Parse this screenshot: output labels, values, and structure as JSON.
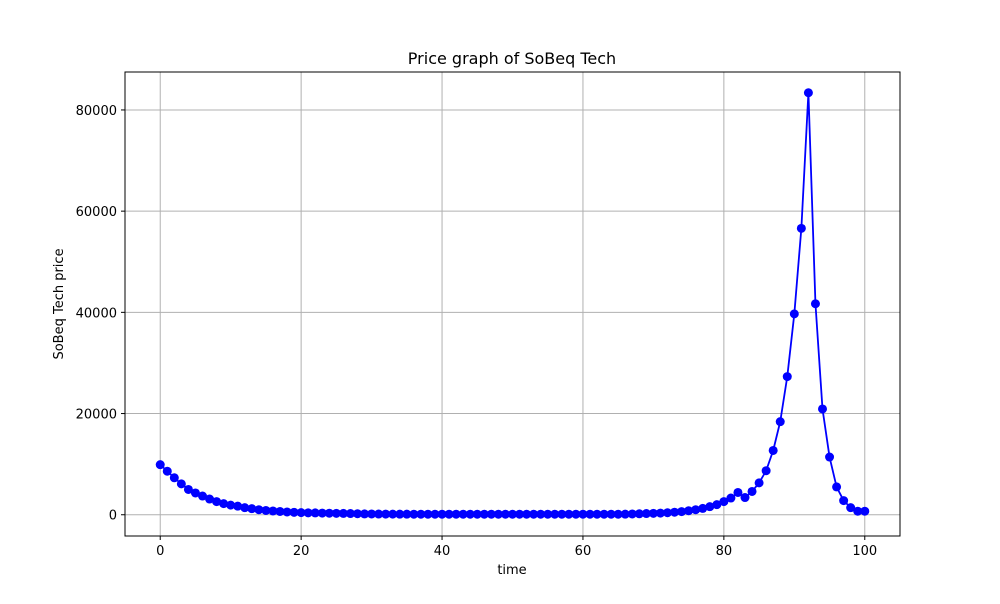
{
  "chart_data": {
    "type": "line",
    "title": "Price graph of SoBeq Tech",
    "xlabel": "time",
    "ylabel": "SoBeq Tech price",
    "xlim": [
      -5,
      105
    ],
    "ylim": [
      -4200,
      87500
    ],
    "x_ticks": [
      0,
      20,
      40,
      60,
      80,
      100
    ],
    "y_ticks": [
      0,
      20000,
      40000,
      60000,
      80000
    ],
    "grid": true,
    "legend": "none",
    "series": [
      {
        "color": "#0000ff",
        "marker": "circle",
        "x": [
          0,
          1,
          2,
          3,
          4,
          5,
          6,
          7,
          8,
          9,
          10,
          11,
          12,
          13,
          14,
          15,
          16,
          17,
          18,
          19,
          20,
          21,
          22,
          23,
          24,
          25,
          26,
          27,
          28,
          29,
          30,
          31,
          32,
          33,
          34,
          35,
          36,
          37,
          38,
          39,
          40,
          41,
          42,
          43,
          44,
          45,
          46,
          47,
          48,
          49,
          50,
          51,
          52,
          53,
          54,
          55,
          56,
          57,
          58,
          59,
          60,
          61,
          62,
          63,
          64,
          65,
          66,
          67,
          68,
          69,
          70,
          71,
          72,
          73,
          74,
          75,
          76,
          77,
          78,
          79,
          80,
          81,
          82,
          83,
          84,
          85,
          86,
          87,
          88,
          89,
          90,
          91,
          92,
          93,
          94,
          95,
          96,
          97,
          98,
          99,
          100
        ],
        "values": [
          9900,
          8600,
          7300,
          6100,
          5000,
          4300,
          3700,
          3100,
          2600,
          2200,
          1900,
          1700,
          1400,
          1200,
          1000,
          850,
          750,
          650,
          550,
          480,
          420,
          380,
          360,
          330,
          300,
          280,
          260,
          240,
          200,
          170,
          150,
          140,
          130,
          125,
          120,
          115,
          110,
          105,
          100,
          100,
          100,
          100,
          100,
          100,
          100,
          100,
          100,
          100,
          100,
          100,
          100,
          100,
          100,
          100,
          100,
          100,
          100,
          100,
          100,
          100,
          100,
          100,
          100,
          100,
          100,
          110,
          120,
          150,
          190,
          240,
          280,
          330,
          400,
          500,
          620,
          800,
          1000,
          1250,
          1600,
          2000,
          2600,
          3300,
          4400,
          3400,
          4600,
          6300,
          8700,
          12700,
          18400,
          27300,
          39700,
          56600,
          83400,
          41700,
          20900,
          11400,
          5500,
          2800,
          1400,
          700,
          700
        ]
      }
    ]
  }
}
